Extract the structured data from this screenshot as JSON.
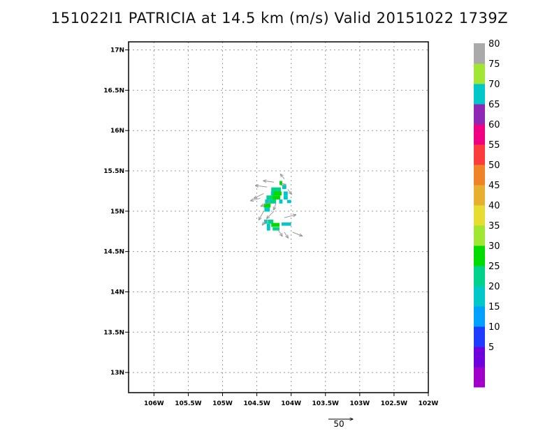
{
  "title": "151022I1 PATRICIA at 14.5 km (m/s) Valid 20151022 1739Z",
  "chart_data": {
    "type": "heatmap",
    "title": "151022I1 PATRICIA at 14.5 km (m/s) Valid 20151022 1739Z",
    "xlabel": "",
    "ylabel": "",
    "x_ticks": [
      {
        "value": -106.0,
        "label": "106W"
      },
      {
        "value": -105.5,
        "label": "105.5W"
      },
      {
        "value": -105.0,
        "label": "105W"
      },
      {
        "value": -104.5,
        "label": "104.5W"
      },
      {
        "value": -104.0,
        "label": "104W"
      },
      {
        "value": -103.5,
        "label": "103.5W"
      },
      {
        "value": -103.0,
        "label": "103W"
      },
      {
        "value": -102.5,
        "label": "102.5W"
      },
      {
        "value": -102.0,
        "label": "102W"
      }
    ],
    "y_ticks": [
      {
        "value": 13.0,
        "label": "13N"
      },
      {
        "value": 13.5,
        "label": "13.5N"
      },
      {
        "value": 14.0,
        "label": "14N"
      },
      {
        "value": 14.5,
        "label": "14.5N"
      },
      {
        "value": 15.0,
        "label": "15N"
      },
      {
        "value": 15.5,
        "label": "15.5N"
      },
      {
        "value": 16.0,
        "label": "16N"
      },
      {
        "value": 16.5,
        "label": "16.5N"
      },
      {
        "value": 17.0,
        "label": "17N"
      }
    ],
    "xlim": [
      -106.37,
      -102.0
    ],
    "ylim": [
      12.75,
      17.1
    ],
    "grid": true,
    "colorbar": {
      "bins": [
        {
          "color": "#a000c8"
        },
        {
          "color": "#6e00dc",
          "label": "5"
        },
        {
          "color": "#1e3cff",
          "label": "10"
        },
        {
          "color": "#00a0ff",
          "label": "15"
        },
        {
          "color": "#00c8c8",
          "label": "20"
        },
        {
          "color": "#00d28c",
          "label": "25"
        },
        {
          "color": "#00dc00",
          "label": "30"
        },
        {
          "color": "#a0e632",
          "label": "35"
        },
        {
          "color": "#e6dc32",
          "label": "40"
        },
        {
          "color": "#e6af2d",
          "label": "45"
        },
        {
          "color": "#f08228",
          "label": "50"
        },
        {
          "color": "#fa3c3c",
          "label": "55"
        },
        {
          "color": "#f00082",
          "label": "60"
        },
        {
          "color": "#8c28b4",
          "label": "65"
        },
        {
          "color": "#00c8c8",
          "label": "70"
        },
        {
          "color": "#a0e632",
          "label": "75"
        },
        {
          "color": "#aaaaaa",
          "label": "80"
        }
      ]
    },
    "cells": [
      {
        "lon": -104.15,
        "lat": 15.35,
        "w": 0.04,
        "h": 0.05,
        "value": 32
      },
      {
        "lon": -104.1,
        "lat": 15.3,
        "w": 0.06,
        "h": 0.05,
        "value": 22
      },
      {
        "lon": -104.22,
        "lat": 15.27,
        "w": 0.14,
        "h": 0.05,
        "value": 27
      },
      {
        "lon": -104.27,
        "lat": 15.22,
        "w": 0.05,
        "h": 0.05,
        "value": 22
      },
      {
        "lon": -104.2,
        "lat": 15.22,
        "w": 0.12,
        "h": 0.05,
        "value": 31
      },
      {
        "lon": -104.08,
        "lat": 15.22,
        "w": 0.06,
        "h": 0.05,
        "value": 22
      },
      {
        "lon": -104.32,
        "lat": 15.17,
        "w": 0.08,
        "h": 0.05,
        "value": 27
      },
      {
        "lon": -104.22,
        "lat": 15.17,
        "w": 0.12,
        "h": 0.05,
        "value": 31
      },
      {
        "lon": -104.08,
        "lat": 15.17,
        "w": 0.06,
        "h": 0.05,
        "value": 22
      },
      {
        "lon": -104.35,
        "lat": 15.12,
        "w": 0.06,
        "h": 0.05,
        "value": 22
      },
      {
        "lon": -104.27,
        "lat": 15.12,
        "w": 0.1,
        "h": 0.05,
        "value": 27
      },
      {
        "lon": -104.15,
        "lat": 15.12,
        "w": 0.05,
        "h": 0.05,
        "value": 22
      },
      {
        "lon": -104.03,
        "lat": 15.12,
        "w": 0.06,
        "h": 0.04,
        "value": 22
      },
      {
        "lon": -104.35,
        "lat": 15.07,
        "w": 0.1,
        "h": 0.05,
        "value": 31
      },
      {
        "lon": -104.35,
        "lat": 15.02,
        "w": 0.08,
        "h": 0.05,
        "value": 22
      },
      {
        "lon": -104.37,
        "lat": 14.87,
        "w": 0.05,
        "h": 0.05,
        "value": 22
      },
      {
        "lon": -104.3,
        "lat": 14.87,
        "w": 0.08,
        "h": 0.05,
        "value": 27
      },
      {
        "lon": -104.33,
        "lat": 14.82,
        "w": 0.05,
        "h": 0.05,
        "value": 22
      },
      {
        "lon": -104.23,
        "lat": 14.83,
        "w": 0.12,
        "h": 0.05,
        "value": 31
      },
      {
        "lon": -104.07,
        "lat": 14.84,
        "w": 0.14,
        "h": 0.04,
        "value": 22
      },
      {
        "lon": -104.33,
        "lat": 14.78,
        "w": 0.05,
        "h": 0.04,
        "value": 22
      },
      {
        "lon": -104.22,
        "lat": 14.78,
        "w": 0.1,
        "h": 0.04,
        "value": 27
      }
    ],
    "vectors": [
      {
        "lon": -104.1,
        "lat": 15.4,
        "u": -8,
        "v": 10
      },
      {
        "lon": -104.25,
        "lat": 15.36,
        "u": -22,
        "v": 3
      },
      {
        "lon": -104.35,
        "lat": 15.3,
        "u": -24,
        "v": 3
      },
      {
        "lon": -104.15,
        "lat": 15.32,
        "u": 10,
        "v": 2
      },
      {
        "lon": -104.4,
        "lat": 15.22,
        "u": -20,
        "v": -10
      },
      {
        "lon": -104.05,
        "lat": 15.27,
        "u": 8,
        "v": -10
      },
      {
        "lon": -104.45,
        "lat": 15.16,
        "u": -20,
        "v": -5
      },
      {
        "lon": -104.3,
        "lat": 15.12,
        "u": -20,
        "v": -10
      },
      {
        "lon": -104.22,
        "lat": 15.1,
        "u": -5,
        "v": -14
      },
      {
        "lon": -104.4,
        "lat": 15.0,
        "u": -10,
        "v": -18
      },
      {
        "lon": -104.25,
        "lat": 15.0,
        "u": -15,
        "v": -15
      },
      {
        "lon": -104.1,
        "lat": 14.92,
        "u": 24,
        "v": 6
      },
      {
        "lon": -104.35,
        "lat": 14.9,
        "u": -10,
        "v": -12
      },
      {
        "lon": -104.2,
        "lat": 14.78,
        "u": 10,
        "v": -15
      },
      {
        "lon": -104.1,
        "lat": 14.74,
        "u": 8,
        "v": -12
      },
      {
        "lon": -103.98,
        "lat": 14.74,
        "u": 20,
        "v": -8
      }
    ],
    "reference_vector": {
      "value": 50,
      "label": "50"
    }
  }
}
